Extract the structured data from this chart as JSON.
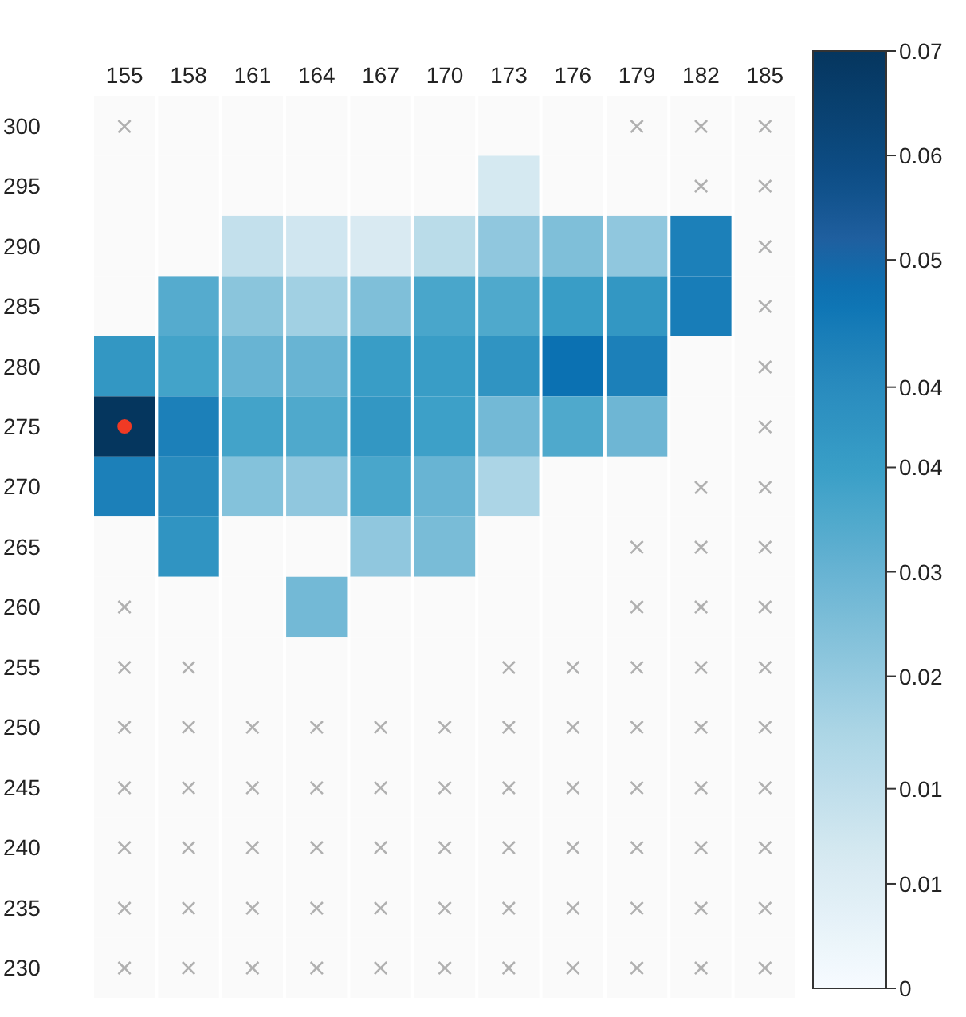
{
  "chart_data": {
    "type": "heatmap",
    "categories": [
      "155",
      "158",
      "161",
      "164",
      "167",
      "170",
      "173",
      "176",
      "179",
      "182",
      "185"
    ],
    "y_categories": [
      "300",
      "295",
      "290",
      "285",
      "280",
      "275",
      "270",
      "265",
      "260",
      "255",
      "250",
      "245",
      "240",
      "235",
      "230"
    ],
    "cells": [
      [
        null,
        null,
        null,
        null,
        null,
        null,
        null,
        null,
        null,
        null,
        null
      ],
      [
        null,
        null,
        null,
        null,
        null,
        null,
        0.01,
        null,
        null,
        null,
        null
      ],
      [
        null,
        null,
        0.014,
        0.011,
        0.009,
        0.016,
        0.024,
        0.027,
        0.024,
        0.048,
        null
      ],
      [
        null,
        0.034,
        0.025,
        0.021,
        0.027,
        0.036,
        0.035,
        0.039,
        0.041,
        0.049,
        null
      ],
      [
        0.041,
        0.037,
        0.031,
        0.031,
        0.039,
        0.039,
        0.042,
        0.052,
        0.048,
        null,
        null
      ],
      [
        0.07,
        0.048,
        0.037,
        0.035,
        0.041,
        0.038,
        0.029,
        0.035,
        0.03,
        null,
        null
      ],
      [
        0.048,
        0.045,
        0.026,
        0.024,
        0.036,
        0.031,
        0.019,
        null,
        null,
        null,
        null
      ],
      [
        null,
        0.042,
        null,
        null,
        0.024,
        0.028,
        null,
        null,
        null,
        null,
        null
      ],
      [
        null,
        null,
        null,
        0.029,
        null,
        null,
        null,
        null,
        null,
        null,
        null
      ],
      [
        null,
        null,
        null,
        null,
        null,
        null,
        null,
        null,
        null,
        null,
        null
      ],
      [
        null,
        null,
        null,
        null,
        null,
        null,
        null,
        null,
        null,
        null,
        null
      ],
      [
        null,
        null,
        null,
        null,
        null,
        null,
        null,
        null,
        null,
        null,
        null
      ],
      [
        null,
        null,
        null,
        null,
        null,
        null,
        null,
        null,
        null,
        null,
        null
      ],
      [
        null,
        null,
        null,
        null,
        null,
        null,
        null,
        null,
        null,
        null,
        null
      ],
      [
        null,
        null,
        null,
        null,
        null,
        null,
        null,
        null,
        null,
        null,
        null
      ]
    ],
    "cell_labels": [
      [
        "×",
        null,
        null,
        null,
        null,
        null,
        null,
        null,
        "×",
        "×",
        "×"
      ],
      [
        null,
        null,
        null,
        null,
        null,
        null,
        null,
        null,
        null,
        "×",
        "×"
      ],
      [
        null,
        null,
        null,
        null,
        null,
        null,
        null,
        null,
        null,
        null,
        "×"
      ],
      [
        null,
        null,
        null,
        null,
        null,
        null,
        null,
        null,
        null,
        null,
        "×"
      ],
      [
        null,
        null,
        null,
        null,
        null,
        null,
        null,
        null,
        null,
        null,
        "×"
      ],
      [
        null,
        null,
        null,
        null,
        null,
        null,
        null,
        null,
        null,
        null,
        "×"
      ],
      [
        null,
        null,
        null,
        null,
        null,
        null,
        null,
        null,
        null,
        "×",
        "×"
      ],
      [
        null,
        null,
        null,
        null,
        null,
        null,
        null,
        null,
        "×",
        "×",
        "×"
      ],
      [
        "×",
        null,
        null,
        null,
        null,
        null,
        null,
        null,
        "×",
        "×",
        "×"
      ],
      [
        "×",
        "×",
        null,
        null,
        null,
        null,
        "×",
        "×",
        "×",
        "×",
        "×"
      ],
      [
        "×",
        "×",
        "×",
        "×",
        "×",
        "×",
        "×",
        "×",
        "×",
        "×",
        "×"
      ],
      [
        "×",
        "×",
        "×",
        "×",
        "×",
        "×",
        "×",
        "×",
        "×",
        "×",
        "×"
      ],
      [
        "×",
        "×",
        "×",
        "×",
        "×",
        "×",
        "×",
        "×",
        "×",
        "×",
        "×"
      ],
      [
        "×",
        "×",
        "×",
        "×",
        "×",
        "×",
        "×",
        "×",
        "×",
        "×",
        "×"
      ],
      [
        "×",
        "×",
        "×",
        "×",
        "×",
        "×",
        "×",
        "×",
        "×",
        "×",
        "×"
      ]
    ],
    "clim": [
      0,
      0.07
    ],
    "cticks": [
      {
        "value": 0,
        "label": "0"
      },
      {
        "value": 0.0078,
        "label": "0.01"
      },
      {
        "value": 0.0149,
        "label": "0.01"
      },
      {
        "value": 0.0233,
        "label": "0.02"
      },
      {
        "value": 0.0311,
        "label": "0.03"
      },
      {
        "value": 0.0389,
        "label": "0.04"
      },
      {
        "value": 0.0449,
        "label": "0.04"
      },
      {
        "value": 0.0544,
        "label": "0.05"
      },
      {
        "value": 0.0622,
        "label": "0.06"
      },
      {
        "value": 0.07,
        "label": "0.07"
      }
    ]
  }
}
